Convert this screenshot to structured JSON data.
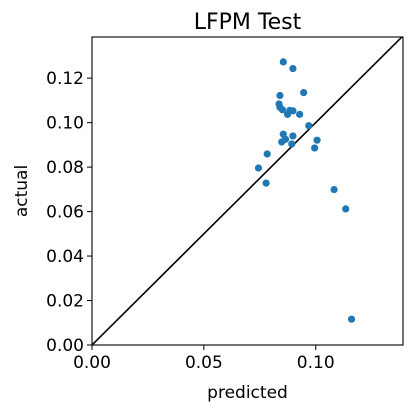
{
  "chart_data": {
    "type": "scatter",
    "title": "LFPM Test",
    "xlabel": "predicted",
    "ylabel": "actual",
    "xlim": [
      0,
      0.139
    ],
    "ylim": [
      0,
      0.1385
    ],
    "grid": false,
    "xticks": [
      "0.00",
      "0.05",
      "0.10"
    ],
    "xtick_values": [
      0.0,
      0.05,
      0.1
    ],
    "yticks": [
      "0.00",
      "0.02",
      "0.04",
      "0.06",
      "0.08",
      "0.10",
      "0.12"
    ],
    "ytick_values": [
      0.0,
      0.02,
      0.04,
      0.06,
      0.08,
      0.1,
      0.12
    ],
    "reference_line": "y = x",
    "marker_color": "#1f77b4",
    "line_color": "#000000",
    "points": [
      {
        "x": 0.0855,
        "y": 0.1273
      },
      {
        "x": 0.0898,
        "y": 0.1243
      },
      {
        "x": 0.0946,
        "y": 0.1135
      },
      {
        "x": 0.084,
        "y": 0.1122
      },
      {
        "x": 0.0836,
        "y": 0.1084
      },
      {
        "x": 0.084,
        "y": 0.1069
      },
      {
        "x": 0.0851,
        "y": 0.1058
      },
      {
        "x": 0.0884,
        "y": 0.1055
      },
      {
        "x": 0.0898,
        "y": 0.1053
      },
      {
        "x": 0.0874,
        "y": 0.1037
      },
      {
        "x": 0.0928,
        "y": 0.1037
      },
      {
        "x": 0.0969,
        "y": 0.0986
      },
      {
        "x": 0.0855,
        "y": 0.0948
      },
      {
        "x": 0.0898,
        "y": 0.094
      },
      {
        "x": 0.0865,
        "y": 0.0925
      },
      {
        "x": 0.0848,
        "y": 0.0913
      },
      {
        "x": 0.1006,
        "y": 0.0921
      },
      {
        "x": 0.0893,
        "y": 0.0904
      },
      {
        "x": 0.0995,
        "y": 0.0886
      },
      {
        "x": 0.0783,
        "y": 0.0859
      },
      {
        "x": 0.0744,
        "y": 0.0796
      },
      {
        "x": 0.0778,
        "y": 0.0728
      },
      {
        "x": 0.1082,
        "y": 0.0699
      },
      {
        "x": 0.1134,
        "y": 0.0612
      },
      {
        "x": 0.116,
        "y": 0.0116
      }
    ]
  }
}
